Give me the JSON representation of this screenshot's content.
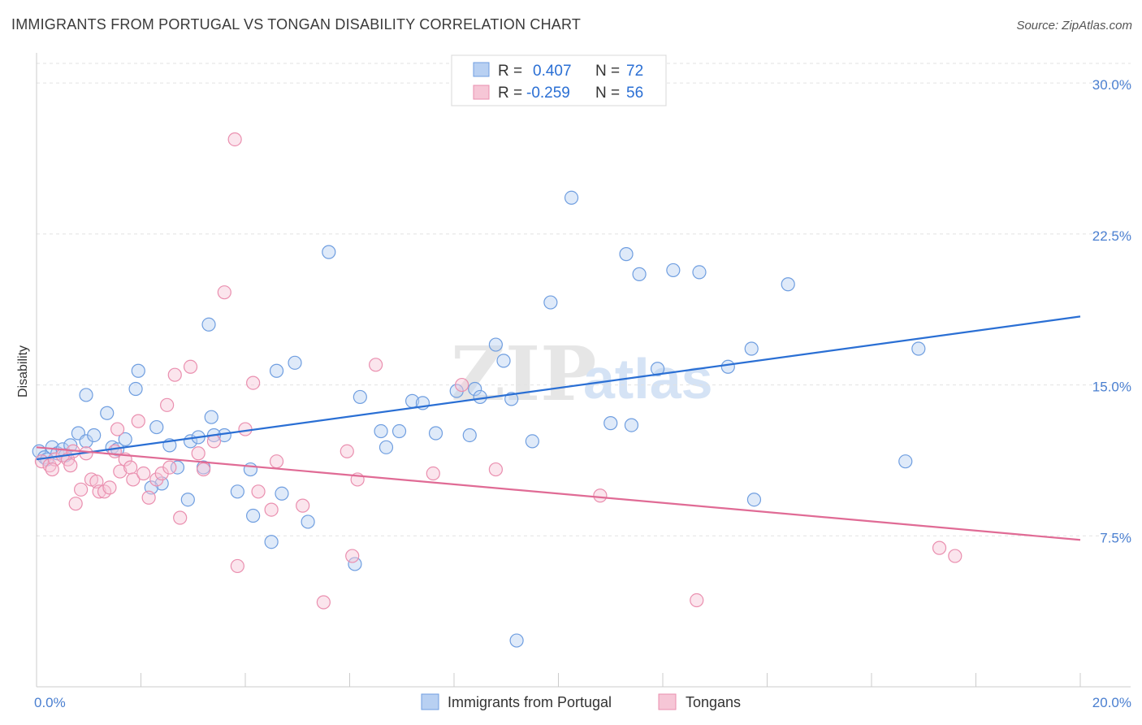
{
  "title": "IMMIGRANTS FROM PORTUGAL VS TONGAN DISABILITY CORRELATION CHART",
  "source": "Source: ZipAtlas.com",
  "watermark": {
    "part1": "ZIP",
    "part2": "atlas"
  },
  "chart_data": {
    "type": "scatter",
    "ylabel": "Disability",
    "xlim": [
      0,
      20
    ],
    "ylim": [
      0,
      31.5
    ],
    "y_ticks": [
      {
        "value": 7.5,
        "label": "7.5%"
      },
      {
        "value": 15.0,
        "label": "15.0%"
      },
      {
        "value": 22.5,
        "label": "22.5%"
      },
      {
        "value": 30.0,
        "label": "30.0%"
      }
    ],
    "x_ticks": [
      {
        "value": 0,
        "label": "0.0%"
      },
      {
        "value": 20,
        "label": "20.0%"
      }
    ],
    "grid": true,
    "legend_position": "top-center",
    "series": [
      {
        "name": "Immigrants from Portugal",
        "color": "#6f9ee0",
        "fill": "#b8d0f2",
        "line_color": "#2a6fd4",
        "r_label": "R =",
        "r_value": "0.407",
        "n_label": "N =",
        "n_value": "72",
        "trend": {
          "x": [
            0,
            20
          ],
          "y": [
            11.3,
            18.4
          ]
        },
        "points": [
          [
            0.05,
            11.7
          ],
          [
            0.15,
            11.4
          ],
          [
            0.3,
            11.9
          ],
          [
            0.4,
            11.6
          ],
          [
            0.5,
            11.8
          ],
          [
            0.65,
            12.0
          ],
          [
            0.55,
            11.5
          ],
          [
            0.2,
            11.3
          ],
          [
            0.8,
            12.6
          ],
          [
            0.95,
            12.2
          ],
          [
            1.1,
            12.5
          ],
          [
            0.95,
            14.5
          ],
          [
            1.35,
            13.6
          ],
          [
            1.45,
            11.9
          ],
          [
            1.55,
            11.8
          ],
          [
            1.7,
            12.3
          ],
          [
            1.95,
            15.7
          ],
          [
            1.9,
            14.8
          ],
          [
            2.3,
            12.9
          ],
          [
            2.55,
            12.0
          ],
          [
            2.4,
            10.1
          ],
          [
            2.2,
            9.9
          ],
          [
            2.7,
            10.9
          ],
          [
            2.95,
            12.2
          ],
          [
            3.1,
            12.4
          ],
          [
            3.35,
            13.4
          ],
          [
            3.6,
            12.5
          ],
          [
            3.4,
            12.5
          ],
          [
            2.9,
            9.3
          ],
          [
            3.2,
            10.9
          ],
          [
            3.3,
            18.0
          ],
          [
            3.85,
            9.7
          ],
          [
            4.1,
            10.8
          ],
          [
            4.15,
            8.5
          ],
          [
            4.5,
            7.2
          ],
          [
            4.6,
            15.7
          ],
          [
            4.7,
            9.6
          ],
          [
            4.95,
            16.1
          ],
          [
            5.2,
            8.2
          ],
          [
            5.6,
            21.6
          ],
          [
            6.1,
            6.1
          ],
          [
            6.2,
            14.4
          ],
          [
            6.6,
            12.7
          ],
          [
            6.7,
            11.9
          ],
          [
            6.95,
            12.7
          ],
          [
            7.2,
            14.2
          ],
          [
            7.4,
            14.1
          ],
          [
            7.65,
            12.6
          ],
          [
            8.05,
            14.7
          ],
          [
            8.3,
            12.5
          ],
          [
            8.4,
            14.8
          ],
          [
            8.5,
            14.4
          ],
          [
            8.8,
            17.0
          ],
          [
            8.95,
            16.2
          ],
          [
            9.1,
            14.3
          ],
          [
            9.2,
            2.3
          ],
          [
            9.5,
            12.2
          ],
          [
            9.85,
            19.1
          ],
          [
            10.25,
            24.3
          ],
          [
            11.0,
            13.1
          ],
          [
            11.3,
            21.5
          ],
          [
            11.4,
            13.0
          ],
          [
            11.55,
            20.5
          ],
          [
            11.9,
            15.8
          ],
          [
            12.2,
            20.7
          ],
          [
            12.7,
            20.6
          ],
          [
            13.25,
            15.9
          ],
          [
            13.7,
            16.8
          ],
          [
            13.75,
            9.3
          ],
          [
            14.4,
            20.0
          ],
          [
            16.65,
            11.2
          ],
          [
            16.9,
            16.8
          ]
        ]
      },
      {
        "name": "Tongans",
        "color": "#ea8faf",
        "fill": "#f6c6d6",
        "line_color": "#e06b95",
        "r_label": "R =",
        "r_value": "-0.259",
        "n_label": "N =",
        "n_value": "56",
        "trend": {
          "x": [
            0,
            20
          ],
          "y": [
            11.9,
            7.3
          ]
        },
        "points": [
          [
            0.1,
            11.2
          ],
          [
            0.25,
            11.0
          ],
          [
            0.35,
            11.3
          ],
          [
            0.5,
            11.5
          ],
          [
            0.6,
            11.3
          ],
          [
            0.3,
            10.8
          ],
          [
            0.7,
            11.7
          ],
          [
            0.65,
            11.0
          ],
          [
            0.75,
            9.1
          ],
          [
            0.85,
            9.8
          ],
          [
            0.95,
            11.6
          ],
          [
            1.05,
            10.3
          ],
          [
            1.15,
            10.2
          ],
          [
            1.2,
            9.7
          ],
          [
            1.3,
            9.7
          ],
          [
            1.4,
            9.9
          ],
          [
            1.5,
            11.7
          ],
          [
            1.55,
            12.8
          ],
          [
            1.6,
            10.7
          ],
          [
            1.7,
            11.3
          ],
          [
            1.8,
            10.9
          ],
          [
            1.85,
            10.3
          ],
          [
            1.95,
            13.2
          ],
          [
            2.05,
            10.6
          ],
          [
            2.15,
            9.4
          ],
          [
            2.3,
            10.3
          ],
          [
            2.4,
            10.6
          ],
          [
            2.5,
            14.0
          ],
          [
            2.55,
            10.9
          ],
          [
            2.65,
            15.5
          ],
          [
            2.75,
            8.4
          ],
          [
            2.95,
            15.9
          ],
          [
            3.1,
            11.6
          ],
          [
            3.2,
            10.8
          ],
          [
            3.4,
            12.2
          ],
          [
            3.6,
            19.6
          ],
          [
            3.8,
            27.2
          ],
          [
            3.85,
            6.0
          ],
          [
            4.0,
            12.8
          ],
          [
            4.15,
            15.1
          ],
          [
            4.25,
            9.7
          ],
          [
            4.5,
            8.8
          ],
          [
            4.6,
            11.2
          ],
          [
            5.1,
            9.0
          ],
          [
            5.5,
            4.2
          ],
          [
            5.95,
            11.7
          ],
          [
            6.15,
            10.3
          ],
          [
            6.05,
            6.5
          ],
          [
            6.5,
            16.0
          ],
          [
            7.6,
            10.6
          ],
          [
            8.15,
            15.0
          ],
          [
            8.8,
            10.8
          ],
          [
            10.8,
            9.5
          ],
          [
            12.65,
            4.3
          ],
          [
            17.3,
            6.9
          ],
          [
            17.6,
            6.5
          ]
        ]
      }
    ]
  }
}
